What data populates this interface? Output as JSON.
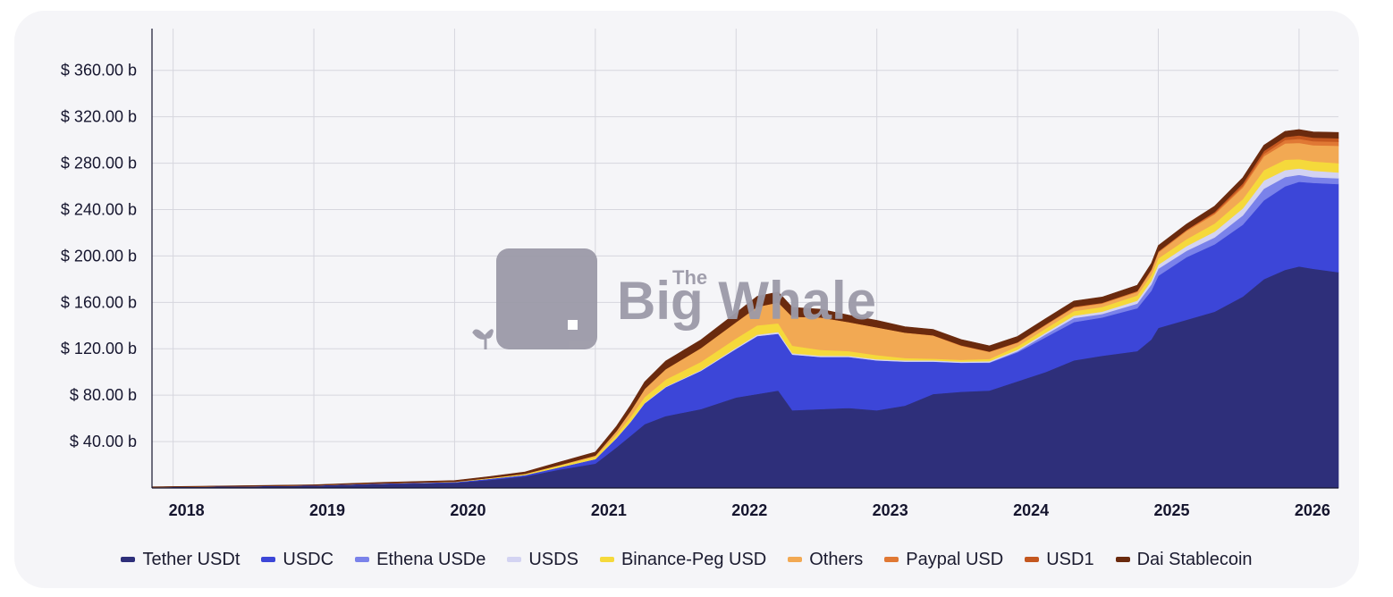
{
  "chart_data": {
    "type": "area",
    "stacked": true,
    "title": "",
    "xlabel": "",
    "ylabel": "",
    "x_tick_labels": [
      "2018",
      "2019",
      "2020",
      "2021",
      "2022",
      "2023",
      "2024",
      "2025",
      "2026"
    ],
    "y_tick_labels": [
      "$ 40.00 b",
      "$ 80.00 b",
      "$ 120.00 b",
      "$ 160.00 b",
      "$ 200.00 b",
      "$ 240.00 b",
      "$ 280.00 b",
      "$ 320.00 b",
      "$ 360.00 b"
    ],
    "y_ticks": [
      40,
      80,
      120,
      160,
      200,
      240,
      280,
      320,
      360
    ],
    "ylim": [
      0,
      396
    ],
    "xlim": [
      2017.85,
      2026.28
    ],
    "y_unit": "billion USD",
    "grid": true,
    "legend_position": "bottom",
    "x": [
      2017.85,
      2018.5,
      2019.0,
      2019.5,
      2020.0,
      2020.25,
      2020.5,
      2020.75,
      2021.0,
      2021.15,
      2021.25,
      2021.35,
      2021.5,
      2021.75,
      2022.0,
      2022.15,
      2022.3,
      2022.4,
      2022.6,
      2022.8,
      2023.0,
      2023.2,
      2023.4,
      2023.6,
      2023.8,
      2024.0,
      2024.2,
      2024.4,
      2024.6,
      2024.85,
      2024.95,
      2025.0,
      2025.2,
      2025.4,
      2025.6,
      2025.75,
      2025.9,
      2026.0,
      2026.1,
      2026.28
    ],
    "series": [
      {
        "name": "Tether USDt",
        "color": "#2e2f7a",
        "values": [
          0.8,
          1.5,
          2.0,
          3.5,
          4.5,
          7,
          10,
          16,
          21,
          35,
          45,
          55,
          62,
          68,
          78,
          81,
          84,
          67,
          68,
          69,
          67,
          71,
          81,
          83,
          84,
          92,
          100,
          110,
          114,
          118,
          128,
          138,
          145,
          152,
          165,
          180,
          188,
          191,
          189,
          186
        ]
      },
      {
        "name": "USDC",
        "color": "#3c46d8",
        "values": [
          0,
          0.1,
          0.3,
          0.5,
          0.6,
          1,
          1.2,
          2,
          4,
          8,
          12,
          18,
          25,
          33,
          42,
          50,
          49,
          48,
          45,
          44,
          43,
          38,
          28,
          25,
          24,
          25,
          30,
          33,
          33,
          37,
          42,
          45,
          54,
          58,
          62,
          68,
          72,
          73,
          74,
          76
        ]
      },
      {
        "name": "Ethena USDe",
        "color": "#7a82ea",
        "values": [
          0,
          0,
          0,
          0,
          0,
          0,
          0,
          0,
          0,
          0,
          0,
          0,
          0,
          0,
          0,
          0,
          0,
          0,
          0,
          0,
          0,
          0,
          0,
          0,
          0.3,
          1,
          2.5,
          3.5,
          3,
          4,
          5.5,
          6,
          5.5,
          6,
          8,
          10,
          8,
          6,
          5,
          5
        ]
      },
      {
        "name": "USDS",
        "color": "#d3d3f2",
        "values": [
          0,
          0,
          0,
          0,
          0,
          0,
          0,
          0,
          0,
          0.2,
          0.3,
          0.4,
          0.5,
          0.7,
          1,
          1.2,
          1.5,
          1.2,
          1.1,
          1,
          1,
          1,
          1,
          1,
          1,
          1.2,
          1.5,
          2,
          2,
          2.5,
          3,
          3.5,
          4,
          5,
          6,
          7,
          6,
          5.5,
          5.5,
          5
        ]
      },
      {
        "name": "Binance-Peg USD",
        "color": "#f5d93b",
        "values": [
          0,
          0,
          0,
          0.1,
          0.3,
          0.5,
          0.8,
          1.5,
          2,
          3,
          4,
          5,
          6,
          7,
          8,
          8,
          7.5,
          6.5,
          5,
          4,
          3.5,
          2,
          1.5,
          1.5,
          2,
          3,
          3.5,
          4,
          4,
          4.5,
          5,
          5.5,
          6,
          7,
          8,
          9,
          9,
          8,
          8,
          8
        ]
      },
      {
        "name": "Others",
        "color": "#f2a953",
        "values": [
          0,
          0,
          0,
          0,
          0,
          0.2,
          0.3,
          0.5,
          1,
          3,
          5,
          7,
          9,
          12,
          14,
          16,
          18,
          25,
          28,
          25,
          24,
          22,
          20,
          12,
          6,
          3,
          3,
          3,
          3,
          3,
          4,
          5,
          7,
          8,
          10,
          12,
          14,
          14,
          14,
          15
        ]
      },
      {
        "name": "Paypal USD",
        "color": "#e07834",
        "values": [
          0,
          0,
          0,
          0,
          0,
          0,
          0,
          0,
          0,
          0,
          0,
          0,
          0,
          0,
          0,
          0,
          0,
          0,
          0,
          0,
          0,
          0,
          0.2,
          0.5,
          0.3,
          0.5,
          0.6,
          0.7,
          0.6,
          0.8,
          1,
          1,
          1,
          1,
          1.5,
          2,
          3,
          3.5,
          3.5,
          3.5
        ]
      },
      {
        "name": "USD1",
        "color": "#c4571f",
        "values": [
          0,
          0,
          0,
          0,
          0,
          0,
          0,
          0,
          0,
          0,
          0,
          0,
          0,
          0,
          0,
          0,
          0,
          0,
          0,
          0,
          0,
          0,
          0,
          0,
          0,
          0,
          0,
          0,
          0,
          0,
          0,
          0,
          0,
          1,
          2,
          2.5,
          2.5,
          3,
          3,
          3
        ]
      },
      {
        "name": "Dai Stablecoin",
        "color": "#6a2a0e",
        "values": [
          0.2,
          0.4,
          0.5,
          0.8,
          1,
          1.2,
          1.5,
          2.5,
          3,
          4,
          5,
          6,
          7,
          7,
          8,
          9,
          9,
          8,
          7,
          6,
          6,
          5,
          5,
          5,
          5,
          5,
          5,
          5,
          5,
          5,
          5,
          5,
          5,
          5,
          5,
          5,
          5,
          5,
          5,
          5
        ]
      }
    ]
  },
  "watermark": {
    "the": "The",
    "brand": "Big Whale",
    "color": "#9c9aa8"
  }
}
